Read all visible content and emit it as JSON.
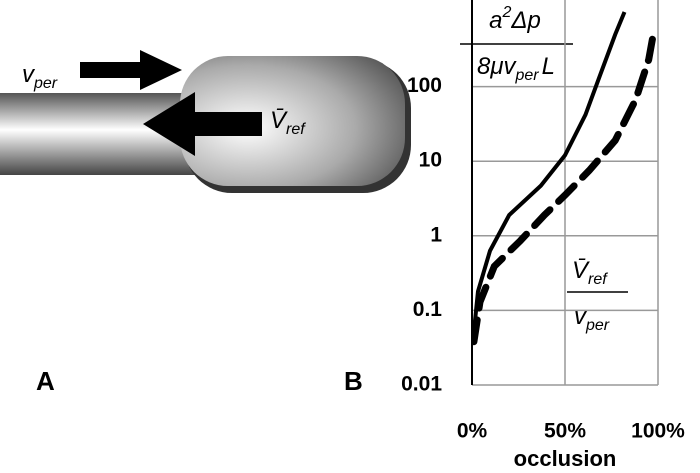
{
  "panels": {
    "a": "A",
    "b": "B"
  },
  "diagram": {
    "v_per": {
      "symbol": "v",
      "sub": "per"
    },
    "v_ref": {
      "symbol": "V̄",
      "sub": "ref"
    }
  },
  "chart_data": {
    "type": "line",
    "log_y": true,
    "grid": true,
    "ylabel": {
      "numerator": {
        "base": "a",
        "sup": "2",
        "rest": "Δp"
      },
      "denominator": {
        "pre": "8μv",
        "sub": "per",
        "post": "L"
      }
    },
    "annotation": {
      "numerator": {
        "symbol": "V̄",
        "sub": "ref"
      },
      "denominator": {
        "symbol": "v",
        "sub": "per"
      }
    },
    "xlabel": "occlusion",
    "xlim": [
      0,
      100
    ],
    "xticks": [
      {
        "value": 0,
        "label": "0%"
      },
      {
        "value": 50,
        "label": "50%"
      },
      {
        "value": 100,
        "label": "100%"
      }
    ],
    "ylim": [
      0.01,
      1000
    ],
    "yticks": [
      0.01,
      0.1,
      1,
      10,
      100
    ],
    "series": [
      {
        "color": "#000000",
        "dash": false,
        "x": [
          1,
          3.2,
          9.7,
          20,
          37,
          50,
          61,
          69,
          77,
          82
        ],
        "values": [
          0.052,
          0.18,
          0.63,
          1.9,
          4.7,
          12,
          42,
          145,
          500,
          1000
        ]
      },
      {
        "color": "#000000",
        "dash": true,
        "x": [
          1,
          4.3,
          12,
          26,
          39,
          50,
          63,
          77,
          88,
          95,
          97
        ],
        "values": [
          0.038,
          0.13,
          0.39,
          0.86,
          1.9,
          3.5,
          7.5,
          19,
          67,
          230,
          430
        ]
      }
    ]
  }
}
